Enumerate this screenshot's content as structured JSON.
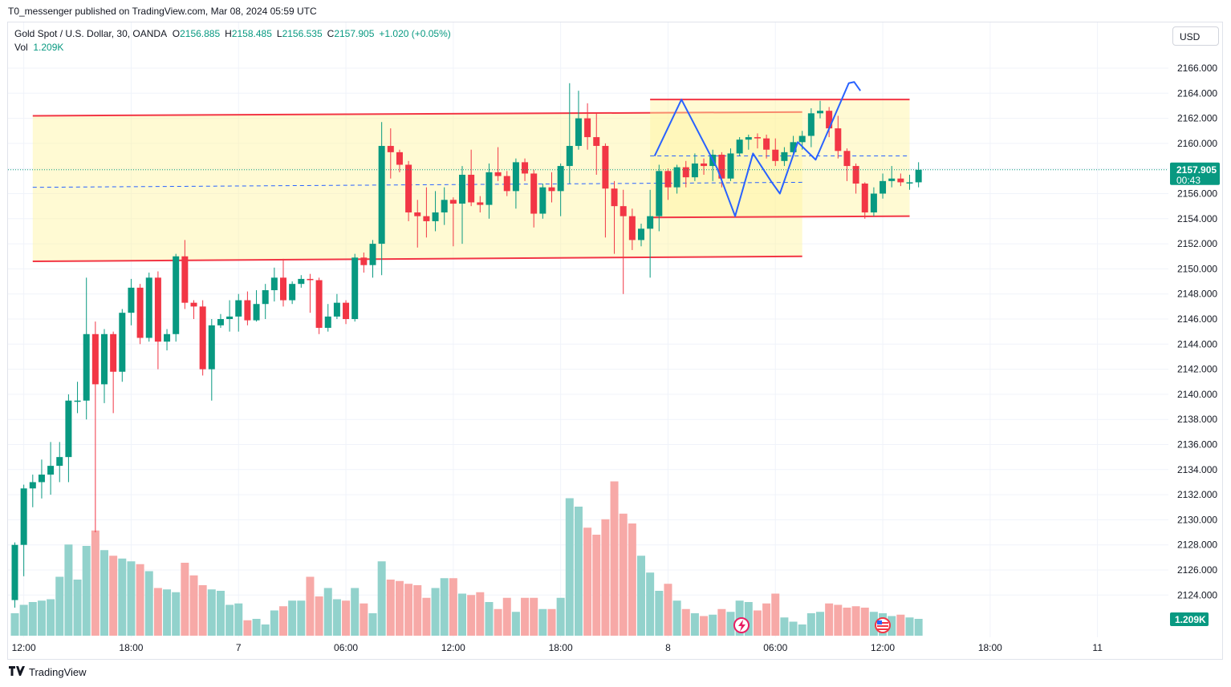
{
  "publish_line": "T0_messenger published on TradingView.com, Mar 08, 2024 05:59 UTC",
  "legend": {
    "symbol": "Gold Spot / U.S. Dollar, 30, OANDA",
    "o_label": "O",
    "o_value": "2156.885",
    "h_label": "H",
    "h_value": "2158.485",
    "l_label": "L",
    "l_value": "2156.535",
    "c_label": "C",
    "c_value": "2157.905",
    "change": "+1.020 (+0.05%)",
    "vol_label": "Vol",
    "vol_value": "1.209K"
  },
  "currency_button": "USD",
  "footer_brand": "TradingView",
  "colors": {
    "up": "#089981",
    "down": "#f23645",
    "vol_up": "#92d2cc",
    "vol_down": "#f7a9a7",
    "zone_fill": "#fff59d",
    "zone_line": "#f23645",
    "projection": "#2962ff",
    "price_badge": "#089981"
  },
  "chart_data": {
    "type": "candlestick",
    "title": "Gold Spot / U.S. Dollar, 30, OANDA",
    "timeframe_minutes": 30,
    "ylim": [
      2121.5,
      2168.5
    ],
    "y_ticks": [
      "2166.000",
      "2164.000",
      "2162.000",
      "2160.000",
      "2158.000",
      "2156.000",
      "2154.000",
      "2152.000",
      "2150.000",
      "2148.000",
      "2146.000",
      "2144.000",
      "2142.000",
      "2140.000",
      "2138.000",
      "2136.000",
      "2134.000",
      "2132.000",
      "2130.000",
      "2128.000",
      "2126.000",
      "2124.000"
    ],
    "x_labels": [
      {
        "bar": 1,
        "label": "12:00"
      },
      {
        "bar": 13,
        "label": "18:00"
      },
      {
        "bar": 25,
        "label": "7"
      },
      {
        "bar": 37,
        "label": "06:00"
      },
      {
        "bar": 49,
        "label": "12:00"
      },
      {
        "bar": 61,
        "label": "18:00"
      },
      {
        "bar": 73,
        "label": "8"
      },
      {
        "bar": 85,
        "label": "06:00"
      },
      {
        "bar": 97,
        "label": "12:00"
      },
      {
        "bar": 109,
        "label": "18:00"
      },
      {
        "bar": 121,
        "label": "11"
      }
    ],
    "candles": [
      [
        2123.6,
        2128.0,
        2123.0,
        2128.2,
        1.6
      ],
      [
        2128.0,
        2132.5,
        2125.5,
        2132.8,
        2.2
      ],
      [
        2132.5,
        2133.0,
        2131.0,
        2133.6,
        2.4
      ],
      [
        2133.0,
        2133.6,
        2131.7,
        2134.8,
        2.5
      ],
      [
        2133.6,
        2134.3,
        2132.0,
        2136.2,
        2.6
      ],
      [
        2134.3,
        2135.0,
        2133.0,
        2136.2,
        4.2
      ],
      [
        2135.0,
        2139.5,
        2133.0,
        2140.0,
        6.5
      ],
      [
        2139.5,
        2139.5,
        2138.5,
        2141.0,
        4.0
      ],
      [
        2139.5,
        2144.8,
        2138.0,
        2149.3,
        6.4
      ],
      [
        2144.8,
        2140.8,
        2129.0,
        2145.8,
        7.5
      ],
      [
        2140.8,
        2144.8,
        2139.3,
        2145.2,
        6.1
      ],
      [
        2144.8,
        2141.8,
        2138.5,
        2145.0,
        5.7
      ],
      [
        2141.8,
        2146.5,
        2141.0,
        2146.8,
        5.5
      ],
      [
        2146.5,
        2148.5,
        2145.5,
        2149.2,
        5.3
      ],
      [
        2148.5,
        2144.5,
        2144.0,
        2148.8,
        5.1
      ],
      [
        2144.5,
        2149.3,
        2144.2,
        2149.7,
        4.6
      ],
      [
        2149.3,
        2144.2,
        2142.0,
        2149.8,
        3.4
      ],
      [
        2144.2,
        2144.8,
        2143.5,
        2145.2,
        3.3
      ],
      [
        2144.8,
        2151.0,
        2144.2,
        2151.2,
        3.1
      ],
      [
        2151.0,
        2147.3,
        2146.8,
        2152.3,
        5.2
      ],
      [
        2147.3,
        2147.0,
        2146.0,
        2147.5,
        4.3
      ],
      [
        2147.0,
        2142.0,
        2141.5,
        2147.5,
        3.6
      ],
      [
        2142.0,
        2145.5,
        2139.5,
        2146.0,
        3.3
      ],
      [
        2145.5,
        2146.0,
        2145.3,
        2146.4,
        3.2
      ],
      [
        2146.0,
        2146.2,
        2145.0,
        2147.5,
        2.2
      ],
      [
        2146.2,
        2147.5,
        2145.0,
        2148.0,
        2.3
      ],
      [
        2147.5,
        2145.9,
        2145.5,
        2148.2,
        1.1
      ],
      [
        2145.9,
        2147.2,
        2145.8,
        2148.3,
        1.2
      ],
      [
        2147.2,
        2148.3,
        2146.0,
        2148.8,
        0.8
      ],
      [
        2148.3,
        2149.3,
        2147.4,
        2150.1,
        1.8
      ],
      [
        2149.3,
        2147.5,
        2147.0,
        2150.8,
        2.1
      ],
      [
        2147.5,
        2148.8,
        2147.2,
        2149.0,
        2.5
      ],
      [
        2148.8,
        2149.2,
        2148.5,
        2149.5,
        2.5
      ],
      [
        2149.2,
        2149.1,
        2146.5,
        2149.6,
        4.2
      ],
      [
        2149.1,
        2145.3,
        2144.8,
        2149.3,
        2.8
      ],
      [
        2145.3,
        2146.2,
        2145.0,
        2147.2,
        3.4
      ],
      [
        2146.2,
        2147.3,
        2146.0,
        2148.0,
        2.6
      ],
      [
        2147.3,
        2146.0,
        2145.6,
        2147.5,
        2.5
      ],
      [
        2146.0,
        2150.9,
        2145.8,
        2151.2,
        3.4
      ],
      [
        2150.9,
        2150.3,
        2149.7,
        2151.3,
        2.3
      ],
      [
        2150.3,
        2152.0,
        2149.3,
        2152.3,
        1.6
      ],
      [
        2152.0,
        2159.8,
        2149.5,
        2161.7,
        5.3
      ],
      [
        2159.8,
        2159.3,
        2157.2,
        2161.2,
        4.0
      ],
      [
        2159.3,
        2158.3,
        2157.7,
        2159.5,
        3.9
      ],
      [
        2158.3,
        2154.5,
        2153.8,
        2158.6,
        3.7
      ],
      [
        2154.5,
        2154.2,
        2151.7,
        2155.5,
        3.6
      ],
      [
        2154.2,
        2153.8,
        2152.5,
        2156.5,
        2.7
      ],
      [
        2153.8,
        2154.5,
        2153.0,
        2156.2,
        3.4
      ],
      [
        2154.5,
        2155.5,
        2153.5,
        2156.5,
        4.1
      ],
      [
        2155.5,
        2155.2,
        2151.8,
        2155.7,
        4.1
      ],
      [
        2155.2,
        2157.5,
        2152.0,
        2158.2,
        3.0
      ],
      [
        2157.5,
        2155.3,
        2155.0,
        2159.5,
        2.9
      ],
      [
        2155.3,
        2155.1,
        2154.5,
        2155.8,
        3.1
      ],
      [
        2155.1,
        2157.7,
        2154.0,
        2158.4,
        2.4
      ],
      [
        2157.7,
        2157.4,
        2157.0,
        2159.7,
        1.9
      ],
      [
        2157.4,
        2156.2,
        2155.8,
        2157.8,
        2.7
      ],
      [
        2156.2,
        2158.5,
        2154.8,
        2158.8,
        1.7
      ],
      [
        2158.5,
        2157.6,
        2157.0,
        2158.8,
        2.7
      ],
      [
        2157.6,
        2154.4,
        2153.3,
        2157.9,
        2.7
      ],
      [
        2154.4,
        2156.5,
        2154.0,
        2156.8,
        1.9
      ],
      [
        2156.5,
        2156.2,
        2155.3,
        2157.7,
        1.9
      ],
      [
        2156.2,
        2158.2,
        2154.2,
        2158.4,
        2.7
      ],
      [
        2158.2,
        2159.8,
        2156.8,
        2164.8,
        9.8
      ],
      [
        2159.8,
        2162.0,
        2159.5,
        2164.2,
        9.2
      ],
      [
        2162.0,
        2160.5,
        2159.5,
        2163.2,
        7.7
      ],
      [
        2160.5,
        2159.8,
        2157.5,
        2162.4,
        7.2
      ],
      [
        2159.8,
        2156.4,
        2152.5,
        2160.0,
        8.3
      ],
      [
        2156.4,
        2155.0,
        2151.2,
        2157.0,
        11.0
      ],
      [
        2155.0,
        2154.2,
        2148.0,
        2156.3,
        8.7
      ],
      [
        2154.2,
        2152.3,
        2151.5,
        2154.8,
        8.0
      ],
      [
        2152.3,
        2153.2,
        2151.8,
        2153.6,
        5.7
      ],
      [
        2153.2,
        2154.2,
        2149.3,
        2156.3,
        4.5
      ],
      [
        2154.2,
        2157.8,
        2153.0,
        2158.3,
        3.2
      ],
      [
        2157.8,
        2156.5,
        2155.5,
        2158.0,
        3.7
      ],
      [
        2156.5,
        2158.1,
        2156.0,
        2158.3,
        2.5
      ],
      [
        2158.1,
        2157.3,
        2156.5,
        2158.6,
        1.9
      ],
      [
        2157.3,
        2158.4,
        2157.0,
        2159.2,
        1.6
      ],
      [
        2158.4,
        2158.2,
        2157.5,
        2158.8,
        1.4
      ],
      [
        2158.2,
        2159.1,
        2157.0,
        2159.5,
        1.5
      ],
      [
        2159.1,
        2157.2,
        2156.5,
        2159.3,
        1.9
      ],
      [
        2157.2,
        2159.2,
        2157.0,
        2159.6,
        1.7
      ],
      [
        2159.2,
        2160.3,
        2159.0,
        2160.5,
        2.5
      ],
      [
        2160.3,
        2160.5,
        2159.5,
        2160.7,
        2.4
      ],
      [
        2160.5,
        2160.4,
        2159.6,
        2160.8,
        1.8
      ],
      [
        2160.4,
        2159.5,
        2158.8,
        2160.7,
        2.3
      ],
      [
        2159.5,
        2158.6,
        2158.2,
        2160.4,
        3.0
      ],
      [
        2158.6,
        2159.3,
        2158.2,
        2159.7,
        1.3
      ],
      [
        2159.3,
        2160.1,
        2159.0,
        2160.6,
        1.0
      ],
      [
        2160.1,
        2160.6,
        2159.5,
        2161.0,
        0.8
      ],
      [
        2160.6,
        2162.4,
        2159.7,
        2162.8,
        1.6
      ],
      [
        2162.4,
        2162.6,
        2162.0,
        2163.4,
        1.7
      ],
      [
        2162.6,
        2161.2,
        2160.5,
        2162.9,
        2.3
      ],
      [
        2161.2,
        2159.4,
        2158.8,
        2162.2,
        2.2
      ],
      [
        2159.4,
        2158.2,
        2157.0,
        2159.6,
        2.0
      ],
      [
        2158.2,
        2156.8,
        2156.0,
        2158.4,
        2.1
      ],
      [
        2156.8,
        2154.5,
        2154.0,
        2156.9,
        2.0
      ],
      [
        2154.5,
        2156.0,
        2154.2,
        2156.5,
        1.7
      ],
      [
        2156.0,
        2157.0,
        2155.6,
        2157.6,
        1.6
      ],
      [
        2157.0,
        2157.2,
        2156.5,
        2158.2,
        1.4
      ],
      [
        2157.2,
        2156.9,
        2156.6,
        2157.6,
        1.5
      ],
      [
        2156.9,
        2156.9,
        2156.3,
        2157.5,
        1.3
      ],
      [
        2156.9,
        2157.9,
        2156.5,
        2158.5,
        1.2
      ]
    ],
    "volume_legend": "Vol",
    "volume_last": "1.209K",
    "last_price_label": "2157.905",
    "countdown_label": "00:43",
    "volume_badge": "1.209K",
    "annotations": {
      "zone_big": {
        "t1": 2,
        "t2": 88,
        "top_start": 2162.2,
        "top_end": 2162.5,
        "bot_start": 2150.6,
        "bot_end": 2151.0
      },
      "zone_small": {
        "t1": 71,
        "t2": 100,
        "top_start": 2163.5,
        "top_end": 2163.5,
        "bot_start": 2154.1,
        "bot_end": 2154.2
      },
      "dashed_mid_big": [
        2156.5,
        2156.9
      ],
      "dashed_mid_small": [
        2159.0,
        2159.0
      ],
      "projection_path": [
        [
          71.5,
          2159.0
        ],
        [
          74.5,
          2163.5
        ],
        [
          78.5,
          2158.0
        ],
        [
          80.5,
          2154.2
        ],
        [
          82.5,
          2159.2
        ],
        [
          84.5,
          2157.0
        ],
        [
          85.5,
          2156.0
        ],
        [
          87.5,
          2160.1
        ],
        [
          89.5,
          2158.7
        ],
        [
          93.2,
          2164.8
        ],
        [
          93.8,
          2164.9
        ],
        [
          94.5,
          2164.2
        ]
      ]
    }
  }
}
